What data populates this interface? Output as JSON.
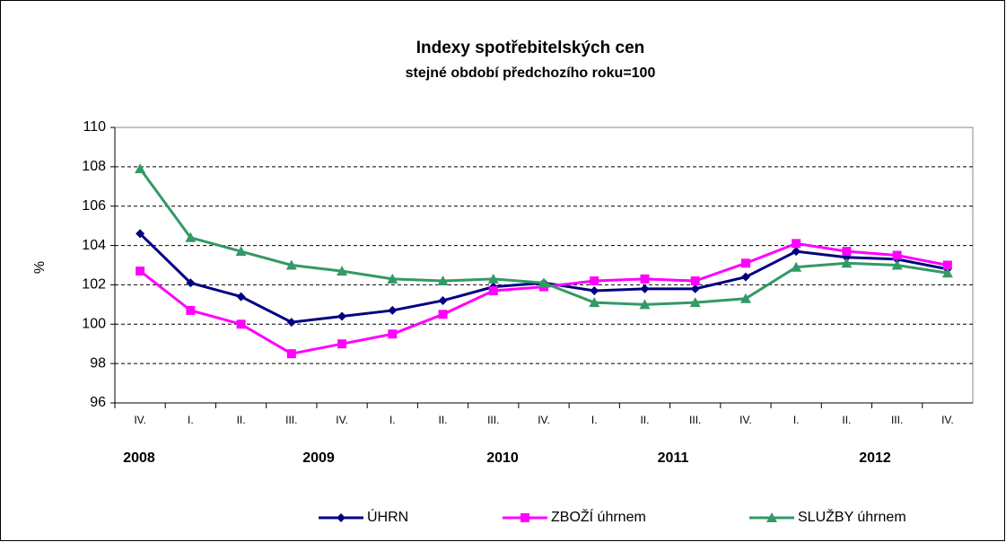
{
  "chart_data": {
    "type": "line",
    "title": "Indexy spotřebitelských  cen",
    "subtitle": "stejné období předchozího roku=100",
    "y_label": "%",
    "categories": [
      "IV.",
      "I.",
      "II.",
      "III.",
      "IV.",
      "I.",
      "II.",
      "III.",
      "IV.",
      "I.",
      "II.",
      "III.",
      "IV.",
      "I.",
      "II.",
      "III.",
      "IV."
    ],
    "year_labels": [
      "2008",
      "2009",
      "2010",
      "2011",
      "2012"
    ],
    "series": [
      {
        "name": "ÚHRN",
        "color": "#000080",
        "marker": "diamond",
        "values": [
          104.6,
          102.1,
          101.4,
          100.1,
          100.4,
          100.7,
          101.2,
          101.9,
          102.1,
          101.7,
          101.8,
          101.8,
          102.4,
          103.7,
          103.4,
          103.3,
          102.8
        ]
      },
      {
        "name": "ZBOŽÍ úhrnem",
        "color": "#ff00ff",
        "marker": "square",
        "values": [
          102.7,
          100.7,
          100.0,
          98.5,
          99.0,
          99.5,
          100.5,
          101.7,
          101.9,
          102.2,
          102.3,
          102.2,
          103.1,
          104.1,
          103.7,
          103.5,
          103.0
        ]
      },
      {
        "name": "SLUŽBY úhrnem",
        "color": "#339966",
        "marker": "triangle",
        "values": [
          107.9,
          104.4,
          103.7,
          103.0,
          102.7,
          102.3,
          102.2,
          102.3,
          102.1,
          101.1,
          101.0,
          101.1,
          101.3,
          102.9,
          103.1,
          103.0,
          102.6
        ]
      }
    ],
    "ylim": [
      96,
      110
    ],
    "yticks": [
      96,
      98,
      100,
      102,
      104,
      106,
      108,
      110
    ],
    "grid": true
  }
}
